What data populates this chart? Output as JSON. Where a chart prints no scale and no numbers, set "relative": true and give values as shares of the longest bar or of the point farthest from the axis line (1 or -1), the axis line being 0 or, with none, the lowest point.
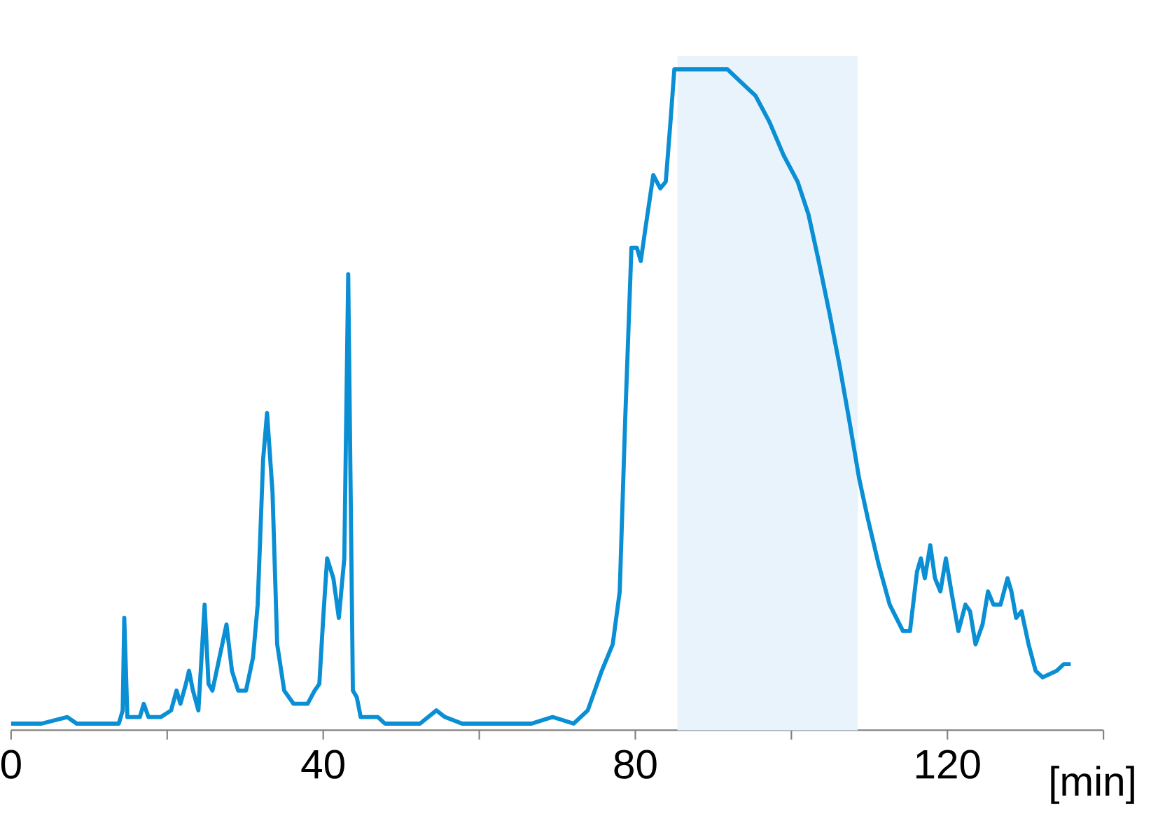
{
  "chart_data": {
    "type": "line",
    "relative": true,
    "xlabel": "[min]",
    "xlim": [
      0,
      140
    ],
    "xticks": [
      0,
      {
        "value": 20,
        "label": null
      },
      40,
      {
        "value": 60,
        "label": null
      },
      80,
      {
        "value": 100,
        "label": null
      },
      120,
      {
        "value": 140,
        "label": null
      }
    ],
    "bands": [
      {
        "axis": "x",
        "from": 85.4,
        "to": 108.5,
        "color": "#e8f3fc"
      }
    ],
    "series": [
      {
        "color": "#0a8fd4",
        "x": [
          0,
          3.9,
          7.2,
          8.4,
          13.8,
          14.3,
          14.5,
          14.9,
          16.5,
          17.0,
          17.6,
          19.2,
          20.5,
          21.2,
          21.7,
          22.4,
          22.8,
          23.3,
          24.0,
          24.8,
          25.3,
          25.8,
          26.7,
          27.6,
          28.3,
          29.1,
          30.1,
          31.0,
          31.6,
          32.3,
          32.8,
          33.5,
          34.1,
          35.0,
          36.2,
          38.0,
          38.9,
          39.5,
          40.0,
          40.5,
          41.3,
          42.0,
          42.7,
          43.2,
          43.8,
          44.3,
          44.8,
          46.1,
          47.0,
          47.9,
          52.4,
          54.5,
          55.6,
          57.8,
          66.7,
          69.4,
          72.1,
          73.9,
          75.7,
          77.1,
          78.0,
          78.7,
          79.5,
          80.2,
          80.7,
          81.3,
          81.8,
          82.3,
          83.2,
          83.9,
          84.5,
          85.0,
          86.1,
          88.3,
          91.8,
          93.6,
          95.4,
          97.2,
          99.0,
          100.8,
          102.2,
          103.5,
          104.9,
          106.2,
          107.4,
          108.7,
          109.8,
          111.2,
          112.6,
          114.3,
          115.2,
          116.1,
          116.6,
          117.1,
          117.8,
          118.4,
          119.1,
          119.8,
          120.5,
          121.4,
          122.3,
          122.9,
          123.6,
          124.5,
          125.2,
          125.9,
          126.8,
          127.7,
          128.2,
          128.8,
          129.5,
          130.4,
          131.3,
          132.2,
          134.0,
          134.9,
          135.8
        ],
        "values": [
          0.01,
          0.01,
          0.02,
          0.01,
          0.01,
          0.03,
          0.17,
          0.02,
          0.02,
          0.04,
          0.02,
          0.02,
          0.03,
          0.06,
          0.04,
          0.07,
          0.09,
          0.06,
          0.03,
          0.19,
          0.07,
          0.06,
          0.11,
          0.16,
          0.09,
          0.06,
          0.06,
          0.11,
          0.19,
          0.41,
          0.48,
          0.36,
          0.13,
          0.06,
          0.04,
          0.04,
          0.06,
          0.07,
          0.17,
          0.26,
          0.23,
          0.17,
          0.26,
          0.69,
          0.06,
          0.05,
          0.02,
          0.02,
          0.02,
          0.01,
          0.01,
          0.03,
          0.02,
          0.01,
          0.01,
          0.02,
          0.01,
          0.03,
          0.09,
          0.13,
          0.21,
          0.47,
          0.73,
          0.73,
          0.71,
          0.76,
          0.8,
          0.84,
          0.82,
          0.83,
          0.92,
          1.0,
          1.0,
          1.0,
          1.0,
          0.98,
          0.96,
          0.92,
          0.87,
          0.83,
          0.78,
          0.71,
          0.63,
          0.55,
          0.47,
          0.38,
          0.32,
          0.25,
          0.19,
          0.15,
          0.15,
          0.24,
          0.26,
          0.23,
          0.28,
          0.23,
          0.21,
          0.26,
          0.21,
          0.15,
          0.19,
          0.18,
          0.13,
          0.16,
          0.21,
          0.19,
          0.19,
          0.23,
          0.21,
          0.17,
          0.18,
          0.13,
          0.09,
          0.08,
          0.09,
          0.1,
          0.1
        ]
      }
    ]
  }
}
